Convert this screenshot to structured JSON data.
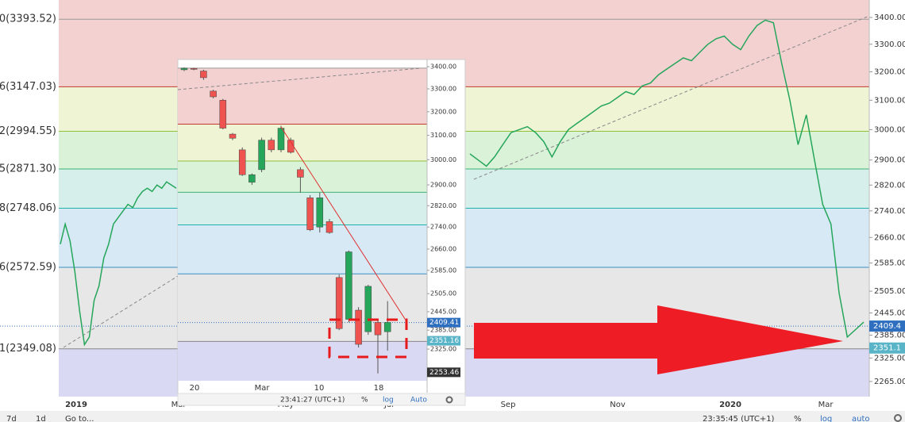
{
  "main_chart": {
    "type": "line",
    "log": true,
    "ylim": [
      2227,
      3467
    ],
    "yticks": [
      {
        "value": 3400,
        "label": "3400.00"
      },
      {
        "value": 3300,
        "label": "3300.00"
      },
      {
        "value": 3200,
        "label": "3200.00"
      },
      {
        "value": 3100,
        "label": "3100.00"
      },
      {
        "value": 3000,
        "label": "3000.00"
      },
      {
        "value": 2900,
        "label": "2900.00"
      },
      {
        "value": 2820,
        "label": "2820.00"
      },
      {
        "value": 2740,
        "label": "2740.00"
      },
      {
        "value": 2660,
        "label": "2660.00"
      },
      {
        "value": 2585,
        "label": "2585.00"
      },
      {
        "value": 2505,
        "label": "2505.00"
      },
      {
        "value": 2445,
        "label": "2445.00"
      },
      {
        "value": 2385,
        "label": "2385.00"
      },
      {
        "value": 2325,
        "label": "2325.00"
      },
      {
        "value": 2265,
        "label": "2265.00"
      }
    ],
    "fib_levels": [
      {
        "label": "0(3393.52)",
        "value": 3393.52,
        "color": "#999999",
        "fill": "#f3d1d1"
      },
      {
        "label": "6(3147.03)",
        "value": 3147.03,
        "color": "#c0392b",
        "fill": "#eef4d4"
      },
      {
        "label": "2(2994.55)",
        "value": 2994.55,
        "color": "#8fc13a",
        "fill": "#daf2d8"
      },
      {
        "label": "5(2871.30)",
        "value": 2871.3,
        "color": "#3cb371",
        "fill": "#d6efeb"
      },
      {
        "label": "8(2748.06)",
        "value": 2748.06,
        "color": "#20b2aa",
        "fill": "#d7e9f4"
      },
      {
        "label": "6(2572.59)",
        "value": 2572.59,
        "color": "#3a8fc1",
        "fill": "#e7e7e7"
      },
      {
        "label": "1(2349.08)",
        "value": 2349.08,
        "color": "#888888",
        "fill": "#d9d9f3"
      }
    ],
    "x_labels": [
      "2019",
      "Mar",
      "May",
      "Jul",
      "Sep",
      "Nov",
      "2020",
      "Mar"
    ],
    "line_color": "#26a65b",
    "left_closes": [
      2640,
      2700,
      2650,
      2560,
      2450,
      2360,
      2380,
      2480,
      2520,
      2600,
      2640,
      2700,
      2720,
      2740,
      2760,
      2750,
      2780,
      2800,
      2810,
      2800,
      2820,
      2810,
      2830,
      2820,
      2810
    ],
    "right_closes": [
      2920,
      2900,
      2880,
      2910,
      2950,
      2990,
      3000,
      3010,
      2990,
      2960,
      2910,
      2960,
      3000,
      3020,
      3040,
      3060,
      3080,
      3090,
      3110,
      3130,
      3120,
      3150,
      3160,
      3190,
      3210,
      3230,
      3250,
      3240,
      3270,
      3300,
      3320,
      3330,
      3300,
      3280,
      3330,
      3370,
      3390,
      3380,
      3230,
      3100,
      2950,
      3050,
      2900,
      2760,
      2700,
      2500,
      2380,
      2400,
      2420
    ],
    "price_tags": [
      {
        "value": 2409.4,
        "label": "2409.4",
        "color": "#2f6fbf"
      },
      {
        "value": 2351.1,
        "label": "2351.1",
        "color": "#5ab4c8"
      }
    ],
    "toolbar": {
      "left": [
        "7d",
        "1d",
        "Go to..."
      ],
      "time": "23:35:45 (UTC+1)",
      "percent": "%",
      "log": "log",
      "auto": "auto"
    }
  },
  "inset_chart": {
    "type": "candlestick",
    "log": true,
    "ylim": [
      2228,
      3433
    ],
    "yticks": [
      {
        "value": 3400,
        "label": "3400.00"
      },
      {
        "value": 3300,
        "label": "3300.00"
      },
      {
        "value": 3200,
        "label": "3200.00"
      },
      {
        "value": 3100,
        "label": "3100.00"
      },
      {
        "value": 3000,
        "label": "3000.00"
      },
      {
        "value": 2900,
        "label": "2900.00"
      },
      {
        "value": 2820,
        "label": "2820.00"
      },
      {
        "value": 2740,
        "label": "2740.00"
      },
      {
        "value": 2660,
        "label": "2660.00"
      },
      {
        "value": 2585,
        "label": "2585.00"
      },
      {
        "value": 2505,
        "label": "2505.00"
      },
      {
        "value": 2445,
        "label": "2445.00"
      },
      {
        "value": 2385,
        "label": "2385.00"
      },
      {
        "value": 2325,
        "label": "2325.00"
      }
    ],
    "x_labels": [
      "20",
      "Mar",
      "10",
      "18"
    ],
    "up_color": "#26a65b",
    "down_color": "#ef5350",
    "candles": [
      {
        "open": 3386,
        "high": 3397,
        "low": 3380,
        "close": 3393
      },
      {
        "open": 3392,
        "high": 3395,
        "low": 3384,
        "close": 3388
      },
      {
        "open": 3380,
        "high": 3386,
        "low": 3340,
        "close": 3350
      },
      {
        "open": 3290,
        "high": 3296,
        "low": 3258,
        "close": 3265
      },
      {
        "open": 3250,
        "high": 3256,
        "low": 3125,
        "close": 3130
      },
      {
        "open": 3105,
        "high": 3110,
        "low": 3080,
        "close": 3088
      },
      {
        "open": 3040,
        "high": 3050,
        "low": 2935,
        "close": 2940
      },
      {
        "open": 2910,
        "high": 2945,
        "low": 2900,
        "close": 2940
      },
      {
        "open": 2960,
        "high": 3090,
        "low": 2950,
        "close": 3080
      },
      {
        "open": 3080,
        "high": 3090,
        "low": 3030,
        "close": 3040
      },
      {
        "open": 3040,
        "high": 3140,
        "low": 3030,
        "close": 3130
      },
      {
        "open": 3080,
        "high": 3090,
        "low": 3025,
        "close": 3030
      },
      {
        "open": 2960,
        "high": 2970,
        "low": 2870,
        "close": 2930
      },
      {
        "open": 2850,
        "high": 2860,
        "low": 2725,
        "close": 2730
      },
      {
        "open": 2740,
        "high": 2870,
        "low": 2720,
        "close": 2850
      },
      {
        "open": 2760,
        "high": 2770,
        "low": 2715,
        "close": 2720
      },
      {
        "open": 2560,
        "high": 2570,
        "low": 2385,
        "close": 2390
      },
      {
        "open": 2420,
        "high": 2655,
        "low": 2410,
        "close": 2650
      },
      {
        "open": 2450,
        "high": 2460,
        "low": 2330,
        "close": 2340
      },
      {
        "open": 2380,
        "high": 2535,
        "low": 2370,
        "close": 2530
      },
      {
        "open": 2410,
        "high": 2420,
        "low": 2250,
        "close": 2370
      },
      {
        "open": 2380,
        "high": 2480,
        "low": 2320,
        "close": 2410
      }
    ],
    "price_tags": [
      {
        "value": 2409.41,
        "label": "2409.41",
        "color": "#2f6fbf"
      },
      {
        "value": 2351.16,
        "label": "2351.16",
        "color": "#5ab4c8"
      },
      {
        "value": 2253.46,
        "label": "2253.46",
        "color": "#333333"
      }
    ],
    "toolbar": {
      "time": "23:41:27 (UTC+1)",
      "percent": "%",
      "log": "log",
      "auto": "Auto"
    }
  }
}
